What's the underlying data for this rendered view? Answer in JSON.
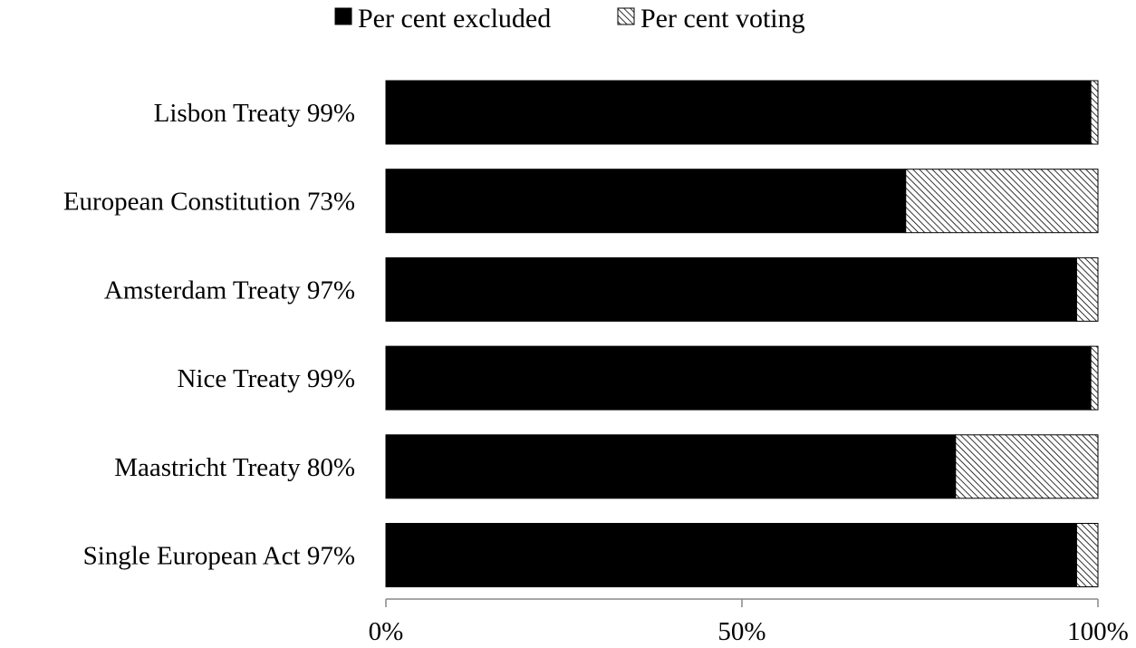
{
  "chart_data": {
    "type": "bar",
    "orientation": "horizontal",
    "stacked": true,
    "percent_stacked": true,
    "categories": [
      "Lisbon Treaty 99%",
      "European Constitution 73%",
      "Amsterdam Treaty 97%",
      "Nice Treaty 99%",
      "Maastricht Treaty 80%",
      "Single European Act 97%"
    ],
    "series": [
      {
        "name": "Per cent excluded",
        "values": [
          99,
          73,
          97,
          99,
          80,
          97
        ],
        "color": "#000000",
        "pattern": "solid"
      },
      {
        "name": "Per cent voting",
        "values": [
          1,
          27,
          3,
          1,
          20,
          3
        ],
        "color": "#000000",
        "pattern": "diagonal-hatch"
      }
    ],
    "xlim": [
      0,
      100
    ],
    "x_ticks": [
      "0%",
      "50%",
      "100%"
    ],
    "grid": false,
    "legend_position": "top"
  }
}
